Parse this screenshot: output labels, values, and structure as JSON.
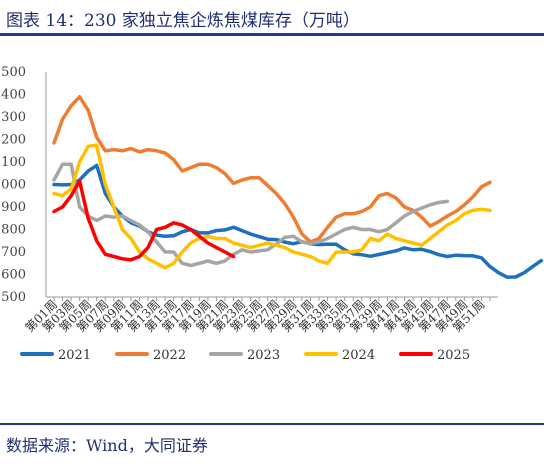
{
  "header": {
    "title": "图表 14：230 家独立焦企炼焦煤库存（万吨）"
  },
  "footer": {
    "source": "数据来源：Wind，大同证券"
  },
  "chart_data": {
    "type": "line",
    "title": "图表 14：230 家独立焦企炼焦煤库存（万吨）",
    "xlabel": "",
    "ylabel": "",
    "ylim": [
      500,
      1500
    ],
    "yticks": [
      500,
      600,
      700,
      800,
      900,
      1000,
      1100,
      1200,
      1300,
      1400,
      1500
    ],
    "ytick_labels": [
      "500",
      "600",
      "700",
      "800",
      "900",
      "1000",
      "1100",
      "1200",
      "1300",
      "1400",
      "1500"
    ],
    "xtick_labels": [
      "第01周",
      "第03周",
      "第05周",
      "第07周",
      "第09周",
      "第11周",
      "第13周",
      "第15周",
      "第17周",
      "第19周",
      "第21周",
      "第23周",
      "第25周",
      "第27周",
      "第29周",
      "第31周",
      "第33周",
      "第35周",
      "第37周",
      "第39周",
      "第41周",
      "第43周",
      "第45周",
      "第47周",
      "第49周",
      "第51周"
    ],
    "grid": false,
    "legend_position": "bottom",
    "series": [
      {
        "name": "2021",
        "color": "#1f6fbf",
        "values": [
          1000,
          998,
          1000,
          1020,
          1060,
          1085,
          960,
          900,
          860,
          830,
          815,
          790,
          775,
          770,
          772,
          790,
          800,
          785,
          785,
          795,
          798,
          810,
          795,
          780,
          768,
          757,
          755,
          744,
          737,
          746,
          737,
          733,
          735,
          734,
          710,
          692,
          688,
          681,
          689,
          697,
          705,
          718,
          710,
          712,
          702,
          688,
          680,
          686,
          684,
          683,
          674,
          635,
          608,
          588,
          589,
          608,
          635,
          662
        ]
      },
      {
        "name": "2022",
        "color": "#ee7d31",
        "values": [
          1185,
          1290,
          1350,
          1390,
          1330,
          1210,
          1150,
          1155,
          1150,
          1160,
          1145,
          1155,
          1150,
          1140,
          1110,
          1060,
          1075,
          1090,
          1090,
          1075,
          1048,
          1005,
          1020,
          1030,
          1030,
          995,
          960,
          915,
          855,
          780,
          745,
          760,
          810,
          855,
          870,
          870,
          880,
          900,
          950,
          960,
          940,
          900,
          885,
          855,
          815,
          835,
          860,
          880,
          910,
          945,
          990,
          1010
        ]
      },
      {
        "name": "2023",
        "color": "#a5a5a5",
        "values": [
          1020,
          1090,
          1090,
          900,
          860,
          840,
          860,
          855,
          860,
          840,
          820,
          790,
          745,
          700,
          700,
          650,
          640,
          650,
          660,
          650,
          660,
          690,
          710,
          700,
          705,
          710,
          735,
          765,
          770,
          745,
          738,
          745,
          760,
          780,
          800,
          810,
          800,
          800,
          790,
          800,
          830,
          860,
          880,
          895,
          910,
          920,
          925
        ]
      },
      {
        "name": "2024",
        "color": "#ffc000",
        "values": [
          960,
          950,
          980,
          1100,
          1170,
          1175,
          1000,
          900,
          800,
          760,
          700,
          670,
          650,
          630,
          650,
          700,
          740,
          760,
          770,
          760,
          760,
          740,
          730,
          720,
          730,
          740,
          730,
          720,
          700,
          690,
          680,
          660,
          650,
          700,
          700,
          700,
          710,
          760,
          750,
          780,
          760,
          750,
          740,
          730,
          760,
          790,
          820,
          840,
          870,
          885,
          890,
          885
        ]
      },
      {
        "name": "2025",
        "color": "#ff0000",
        "values": [
          880,
          900,
          950,
          1015,
          850,
          750,
          690,
          680,
          670,
          665,
          680,
          720,
          800,
          810,
          830,
          820,
          800,
          770,
          740,
          720,
          700,
          680
        ]
      }
    ]
  }
}
